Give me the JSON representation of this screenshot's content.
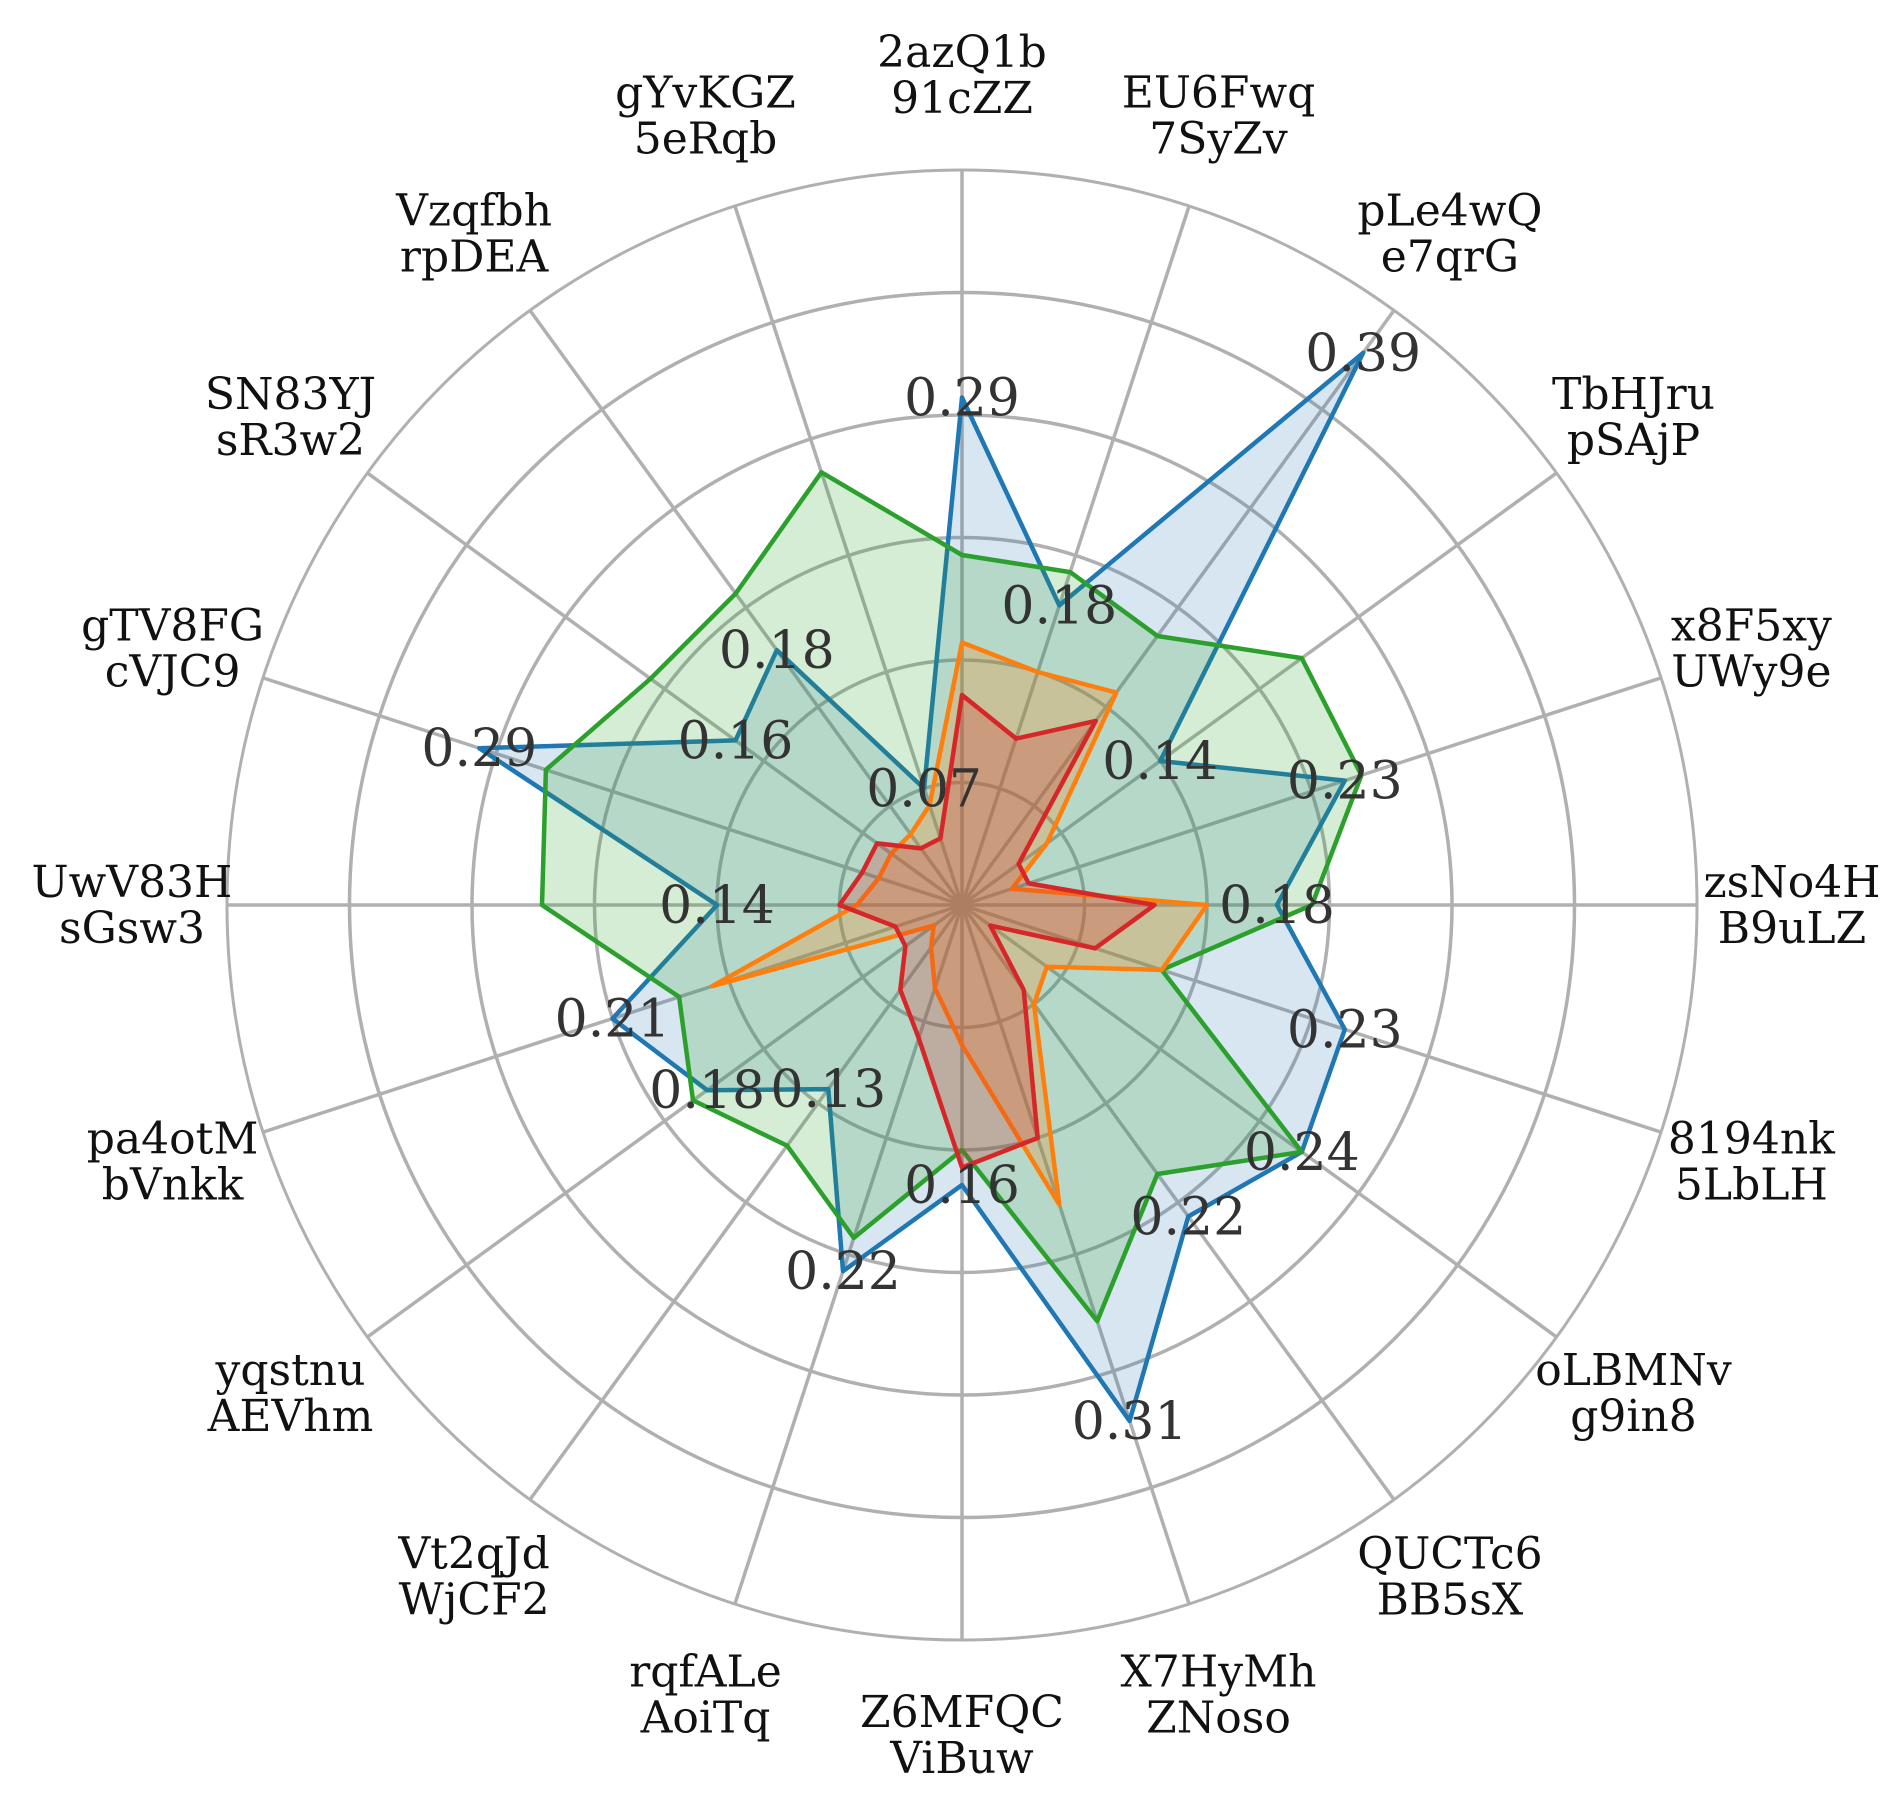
{
  "chart_data": {
    "type": "radar",
    "title": "",
    "rmax": 0.42,
    "ring_count": 6,
    "grid": true,
    "legend": "none",
    "categories": [
      [
        "2azQ1b",
        "91cZZ"
      ],
      [
        "EU6Fwq",
        "7SyZv"
      ],
      [
        "pLe4wQ",
        "e7qrG"
      ],
      [
        "TbHJru",
        "pSAjP"
      ],
      [
        "x8F5xy",
        "UWy9e"
      ],
      [
        "zsNo4H",
        "B9uLZ"
      ],
      [
        "8194nk",
        "5LbLH"
      ],
      [
        "oLBMNv",
        "g9in8"
      ],
      [
        "QUCTc6",
        "BB5sX"
      ],
      [
        "X7HyMh",
        "ZNoso"
      ],
      [
        "Z6MFQC",
        "ViBuw"
      ],
      [
        "rqfALe",
        "AoiTq"
      ],
      [
        "Vt2qJd",
        "WjCF2"
      ],
      [
        "yqstnu",
        "AEVhm"
      ],
      [
        "pa4otM",
        "bVnkk"
      ],
      [
        "UwV83H",
        "sGsw3"
      ],
      [
        "gTV8FG",
        "cVJC9"
      ],
      [
        "SN83YJ",
        "sR3w2"
      ],
      [
        "Vzqfbh",
        "rpDEA"
      ],
      [
        "gYvKGZ",
        "5eRqb"
      ]
    ],
    "series": [
      {
        "color": "#1f77b4",
        "fill_opacity": 0.18,
        "values": [
          0.29,
          0.18,
          0.39,
          0.14,
          0.23,
          0.18,
          0.23,
          0.24,
          0.22,
          0.31,
          0.16,
          0.22,
          0.13,
          0.18,
          0.21,
          0.14,
          0.29,
          0.16,
          0.18,
          0.07
        ],
        "value_labels": [
          "0.29",
          "0.18",
          "0.39",
          "0.14",
          "0.23",
          "0.18",
          "0.23",
          "0.24",
          "0.22",
          "0.31",
          "0.16",
          "0.22",
          "0.13",
          "0.18",
          "0.21",
          "0.14",
          "0.29",
          "0.16",
          "0.18",
          "0.07"
        ]
      },
      {
        "color": "#2ca02c",
        "fill_opacity": 0.2,
        "values": [
          0.2,
          0.2,
          0.19,
          0.24,
          0.24,
          0.2,
          0.12,
          0.24,
          0.19,
          0.25,
          0.14,
          0.2,
          0.17,
          0.19,
          0.17,
          0.24,
          0.25,
          0.22,
          0.22,
          0.26
        ]
      },
      {
        "color": "#ff7f0e",
        "fill_opacity": 0.25,
        "values": [
          0.15,
          0.14,
          0.15,
          0.06,
          0.03,
          0.14,
          0.12,
          0.06,
          0.07,
          0.18,
          0.08,
          0.05,
          0.03,
          0.02,
          0.15,
          0.06,
          0.05,
          0.05,
          0.05,
          0.06
        ]
      },
      {
        "color": "#d62728",
        "fill_opacity": 0.25,
        "values": [
          0.12,
          0.1,
          0.13,
          0.04,
          0.04,
          0.11,
          0.08,
          0.02,
          0.06,
          0.14,
          0.15,
          0.08,
          0.06,
          0.04,
          0.04,
          0.07,
          0.06,
          0.06,
          0.04,
          0.04
        ]
      }
    ]
  }
}
